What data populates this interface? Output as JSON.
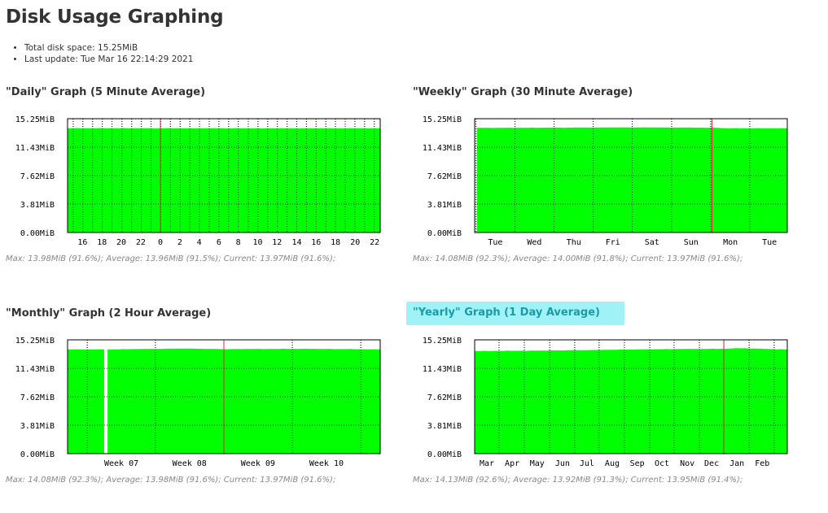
{
  "page": {
    "title": "Disk Usage Graphing",
    "total_disk_space": "Total disk space: 15.25MiB",
    "last_update": "Last update: Tue Mar 16 22:14:29 2021"
  },
  "colors": {
    "fill": "#00ff00",
    "marker": "#cc3333",
    "highlight": "#9ff3f6"
  },
  "panels": [
    {
      "title": "\"Daily\" Graph (5 Minute Average)",
      "stats": "Max: 13.98MiB (91.6%); Average: 13.96MiB (91.5%); Current: 13.97MiB (91.6%);",
      "highlighted": false
    },
    {
      "title": "\"Weekly\" Graph (30 Minute Average)",
      "stats": "Max: 14.08MiB (92.3%); Average: 14.00MiB (91.8%); Current: 13.97MiB (91.6%);",
      "highlighted": false
    },
    {
      "title": "\"Monthly\" Graph (2 Hour Average)",
      "stats": "Max: 14.08MiB (92.3%); Average: 13.98MiB (91.6%); Current: 13.97MiB (91.6%);",
      "highlighted": false
    },
    {
      "title": "\"Yearly\" Graph (1 Day Average)",
      "stats": "Max: 14.13MiB (92.6%); Average: 13.92MiB (91.3%); Current: 13.95MiB (91.4%);",
      "highlighted": true
    }
  ],
  "chart_data": [
    {
      "type": "area",
      "title": "\"Daily\" Graph (5 Minute Average)",
      "y_tick_labels": [
        "0.00MiB",
        "3.81MiB",
        "7.62MiB",
        "11.43MiB",
        "15.25MiB"
      ],
      "y_ticks": [
        0,
        3.81,
        7.62,
        11.43,
        15.25
      ],
      "ylim": [
        0,
        15.25
      ],
      "x_tick_labels": [
        "16",
        "18",
        "20",
        "22",
        "0",
        "2",
        "4",
        "6",
        "8",
        "10",
        "12",
        "14",
        "16",
        "18",
        "20",
        "22"
      ],
      "x_tick_fractions": [
        0.048,
        0.11,
        0.172,
        0.234,
        0.297,
        0.359,
        0.421,
        0.484,
        0.546,
        0.608,
        0.67,
        0.733,
        0.795,
        0.857,
        0.92,
        0.982
      ],
      "grid_fractions": [
        0.018,
        0.049,
        0.08,
        0.111,
        0.142,
        0.174,
        0.205,
        0.236,
        0.267,
        0.298,
        0.329,
        0.36,
        0.391,
        0.422,
        0.453,
        0.484,
        0.515,
        0.546,
        0.578,
        0.609,
        0.64,
        0.671,
        0.702,
        0.733,
        0.764,
        0.795,
        0.826,
        0.857,
        0.888,
        0.919,
        0.95,
        0.981
      ],
      "marker_fraction": 0.297,
      "series": [
        {
          "x": [
            0,
            0.3,
            0.6,
            1.0
          ],
          "values": [
            13.98,
            13.97,
            13.96,
            13.97
          ]
        }
      ],
      "grid": true
    },
    {
      "type": "area",
      "title": "\"Weekly\" Graph (30 Minute Average)",
      "y_tick_labels": [
        "0.00MiB",
        "3.81MiB",
        "7.62MiB",
        "11.43MiB",
        "15.25MiB"
      ],
      "y_ticks": [
        0,
        3.81,
        7.62,
        11.43,
        15.25
      ],
      "ylim": [
        0,
        15.25
      ],
      "x_tick_labels": [
        "Tue",
        "Wed",
        "Thu",
        "Fri",
        "Sat",
        "Sun",
        "Mon",
        "Tue"
      ],
      "x_tick_fractions": [
        0.066,
        0.191,
        0.317,
        0.442,
        0.567,
        0.692,
        0.818,
        0.943
      ],
      "grid_fractions": [
        0.004,
        0.129,
        0.254,
        0.379,
        0.504,
        0.63,
        0.755,
        0.88
      ],
      "marker_fraction": 0.759,
      "data_start_fraction": 0.007,
      "series": [
        {
          "x": [
            0,
            0.25,
            0.5,
            0.75,
            0.8,
            1.0
          ],
          "values": [
            14.02,
            14.05,
            14.08,
            14.05,
            13.98,
            13.97
          ]
        }
      ],
      "grid": true
    },
    {
      "type": "area",
      "title": "\"Monthly\" Graph (2 Hour Average)",
      "y_tick_labels": [
        "0.00MiB",
        "3.81MiB",
        "7.62MiB",
        "11.43MiB",
        "15.25MiB"
      ],
      "y_ticks": [
        0,
        3.81,
        7.62,
        11.43,
        15.25
      ],
      "ylim": [
        0,
        15.25
      ],
      "x_tick_labels": [
        "Week 07",
        "Week 08",
        "Week 09",
        "Week 10"
      ],
      "x_tick_fractions": [
        0.172,
        0.39,
        0.609,
        0.828
      ],
      "grid_fractions": [
        0.063,
        0.281,
        0.5,
        0.719,
        0.938
      ],
      "marker_fraction": 0.5,
      "gap": [
        0.117,
        0.128
      ],
      "series": [
        {
          "x": [
            0,
            0.117,
            0.128,
            0.38,
            0.5,
            0.75,
            1.0
          ],
          "values": [
            13.97,
            13.97,
            13.97,
            14.08,
            14.0,
            14.05,
            13.97
          ]
        }
      ],
      "grid": true
    },
    {
      "type": "area",
      "title": "\"Yearly\" Graph (1 Day Average)",
      "y_tick_labels": [
        "0.00MiB",
        "3.81MiB",
        "7.62MiB",
        "11.43MiB",
        "15.25MiB"
      ],
      "y_ticks": [
        0,
        3.81,
        7.62,
        11.43,
        15.25
      ],
      "ylim": [
        0,
        15.25
      ],
      "x_tick_labels": [
        "Mar",
        "Apr",
        "May",
        "Jun",
        "Jul",
        "Aug",
        "Sep",
        "Oct",
        "Nov",
        "Dec",
        "Jan",
        "Feb"
      ],
      "x_tick_fractions": [
        0.039,
        0.12,
        0.2,
        0.281,
        0.359,
        0.44,
        0.52,
        0.599,
        0.68,
        0.758,
        0.839,
        0.92
      ],
      "grid_fractions": [
        0.0,
        0.078,
        0.159,
        0.24,
        0.32,
        0.398,
        0.479,
        0.56,
        0.638,
        0.719,
        0.797,
        0.878,
        0.958
      ],
      "marker_fraction": 0.797,
      "series": [
        {
          "x": [
            0,
            0.2,
            0.4,
            0.6,
            0.8,
            0.85,
            1.0
          ],
          "values": [
            13.75,
            13.8,
            13.9,
            14.0,
            14.05,
            14.13,
            13.95
          ]
        }
      ],
      "grid": true
    }
  ]
}
